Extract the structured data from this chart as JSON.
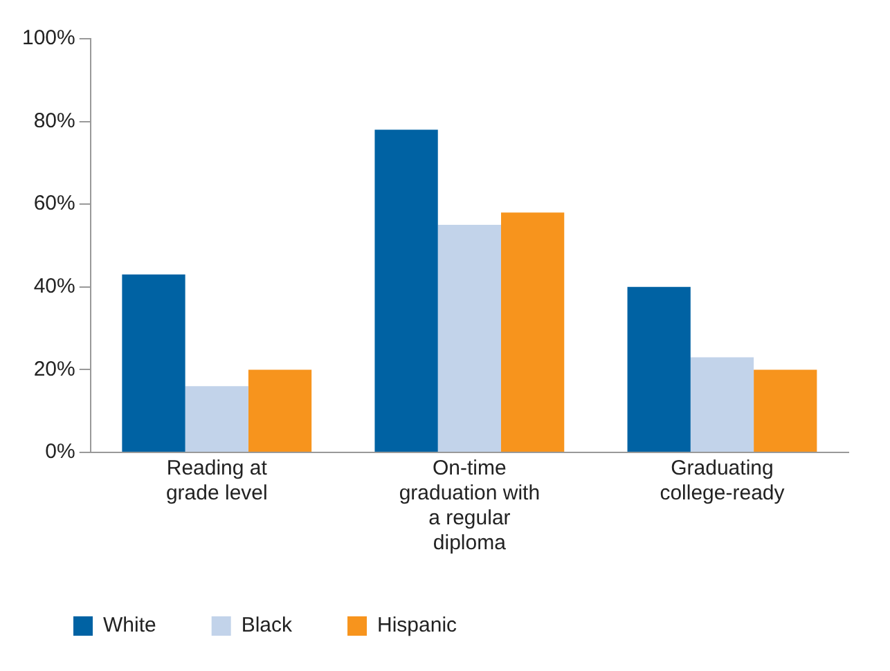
{
  "chart_data": {
    "type": "bar",
    "categories": [
      "Reading at grade level",
      "On-time graduation with a regular diploma",
      "Graduating college-ready"
    ],
    "series": [
      {
        "name": "White",
        "color": "#0062a3",
        "values": [
          43,
          78,
          40
        ]
      },
      {
        "name": "Black",
        "color": "#c2d3ea",
        "values": [
          16,
          55,
          23
        ]
      },
      {
        "name": "Hispanic",
        "color": "#f7941d",
        "values": [
          20,
          58,
          20
        ]
      }
    ],
    "ylim": [
      0,
      100
    ],
    "yticks": [
      {
        "value": 0,
        "label": "0%"
      },
      {
        "value": 20,
        "label": "20%"
      },
      {
        "value": 40,
        "label": "40%"
      },
      {
        "value": 60,
        "label": "60%"
      },
      {
        "value": 80,
        "label": "80%"
      },
      {
        "value": 100,
        "label": "100%"
      }
    ],
    "grid": false,
    "legend": "bottom left"
  }
}
